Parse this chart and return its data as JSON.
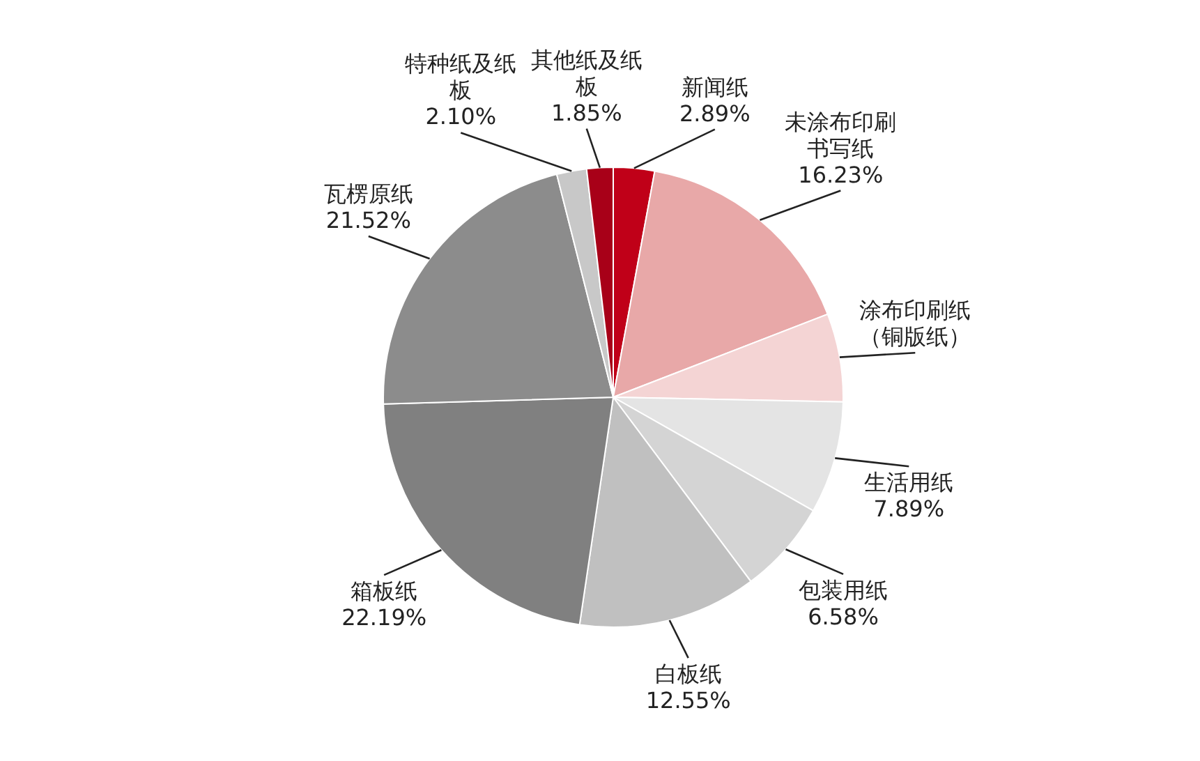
{
  "chart_data": {
    "type": "pie",
    "categories": [
      "新闻纸",
      "未涂布印刷书写纸",
      "涂布印刷纸（铜版纸）",
      "生活用纸",
      "包装用纸",
      "白板纸",
      "箱板纸",
      "瓦楞原纸",
      "特种纸及纸板",
      "其他纸及纸板"
    ],
    "values": [
      2.89,
      16.23,
      6.2,
      7.89,
      6.58,
      12.55,
      22.19,
      21.52,
      2.1,
      1.85
    ],
    "value_labels": [
      "2.89%",
      "16.23%",
      null,
      "7.89%",
      "6.58%",
      "12.55%",
      "22.19%",
      "21.52%",
      "2.10%",
      "1.85%"
    ],
    "colors": [
      "#c00018",
      "#e8a8a8",
      "#f4d4d4",
      "#e4e4e4",
      "#d4d4d4",
      "#c0c0c0",
      "#808080",
      "#8c8c8c",
      "#c8c8c8",
      "#a80018"
    ]
  }
}
